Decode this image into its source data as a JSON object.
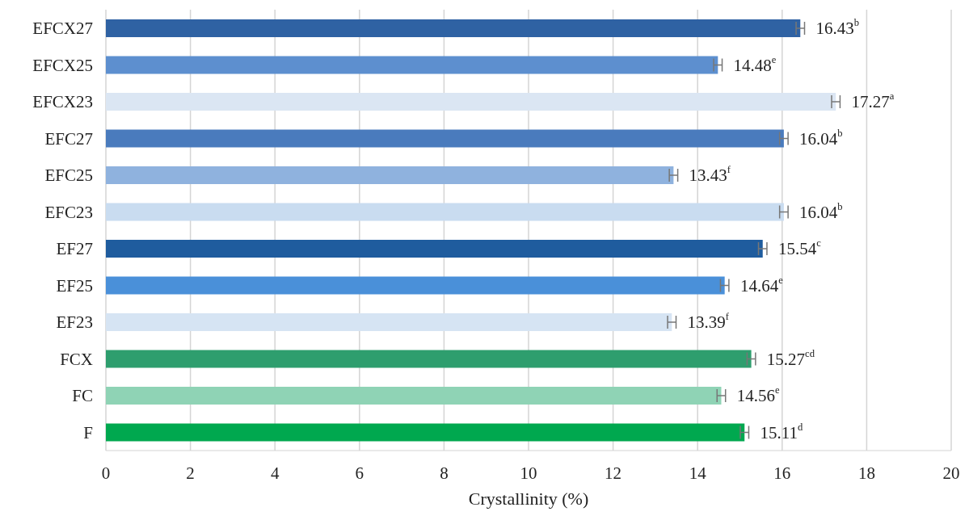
{
  "chart_data": {
    "type": "bar",
    "orientation": "horizontal",
    "xlabel": "Crystallinity (%)",
    "categories": [
      "EFCX27",
      "EFCX25",
      "EFCX23",
      "EFC27",
      "EFC25",
      "EFC23",
      "EF27",
      "EF25",
      "EF23",
      "FCX",
      "FC",
      "F"
    ],
    "values": [
      16.43,
      14.48,
      17.27,
      16.04,
      13.43,
      16.04,
      15.54,
      14.64,
      13.39,
      15.27,
      14.56,
      15.11
    ],
    "errors": [
      0.1,
      0.1,
      0.1,
      0.1,
      0.1,
      0.1,
      0.1,
      0.1,
      0.1,
      0.1,
      0.1,
      0.1
    ],
    "value_labels": [
      "16.43$^{b}$",
      "14.48$^{e}$",
      "17.27$^{a}$",
      "16.04$^{b}$",
      "13.43$^{f}$",
      "16.04$^{b}$",
      "15.54$^{c}$",
      "14.64$^{e}$",
      "13.39$^{f}$",
      "15.27$^{cd}$",
      "14.56$^{e}$",
      "15.11$^{d}$"
    ],
    "colors": [
      "#2f62a3",
      "#5d8fcf",
      "#dbe6f3",
      "#4a7bbd",
      "#8fb2de",
      "#c9dcf0",
      "#1f5c9e",
      "#4a90d9",
      "#d6e4f3",
      "#2e9e6e",
      "#8fd3b5",
      "#00a84f"
    ],
    "xlim": [
      0,
      20
    ],
    "xticks": [
      0,
      2,
      4,
      6,
      8,
      10,
      12,
      14,
      16,
      18,
      20
    ],
    "grid": "x"
  }
}
